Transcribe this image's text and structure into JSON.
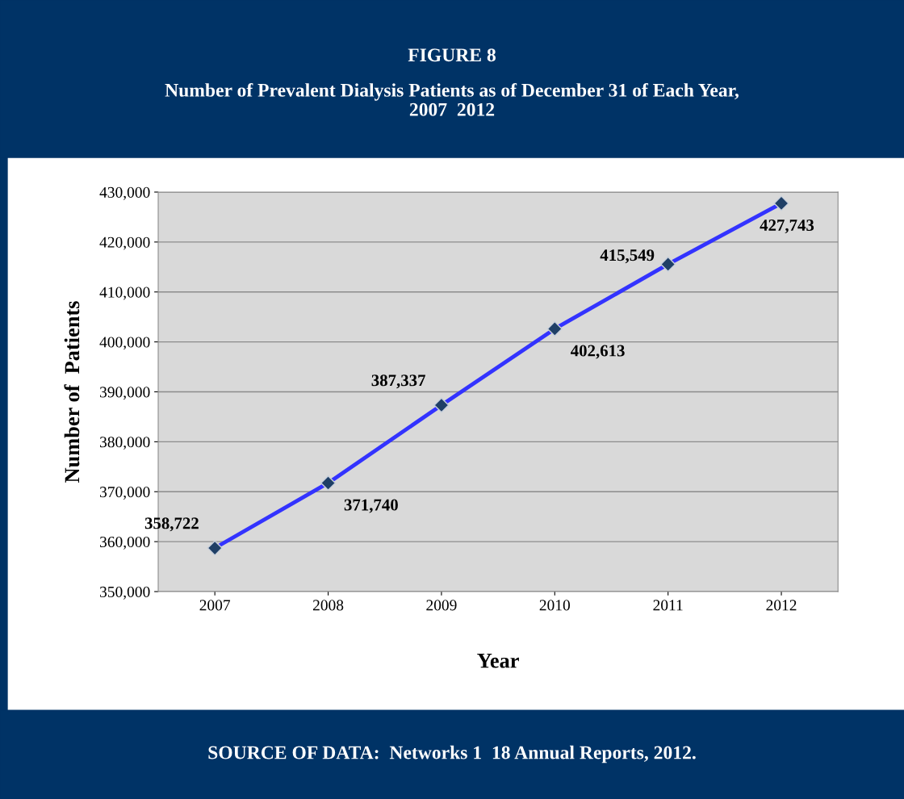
{
  "chart_data": {
    "type": "line",
    "title": "FIGURE 8",
    "subtitle": "Number of Prevalent Dialysis Patients as of December 31 of Each Year,\n2007  2012",
    "xlabel": "Year",
    "ylabel": "Number of  Patients",
    "categories": [
      "2007",
      "2008",
      "2009",
      "2010",
      "2011",
      "2012"
    ],
    "series": [
      {
        "color": "#3333ff",
        "values": [
          358722,
          371740,
          387337,
          402613,
          415549,
          427743
        ],
        "value_labels": [
          "358,722",
          "371,740",
          "387,337",
          "402,613",
          "415,549",
          "427,743"
        ]
      }
    ],
    "marker": "diamond",
    "line_style": "solid",
    "ylim": [
      350000,
      430000
    ],
    "yticks": [
      {
        "value": 350000,
        "label": "350,000"
      },
      {
        "value": 360000,
        "label": "360,000"
      },
      {
        "value": 370000,
        "label": "370,000"
      },
      {
        "value": 380000,
        "label": "380,000"
      },
      {
        "value": 390000,
        "label": "390,000"
      },
      {
        "value": 400000,
        "label": "400,000"
      },
      {
        "value": 410000,
        "label": "410,000"
      },
      {
        "value": 420000,
        "label": "420,000"
      },
      {
        "value": 430000,
        "label": "430,000"
      }
    ],
    "grid": "y",
    "legend": false,
    "annotations": [
      "SOURCE OF DATA:  Networks 1  18 Annual Reports, 2012."
    ]
  }
}
